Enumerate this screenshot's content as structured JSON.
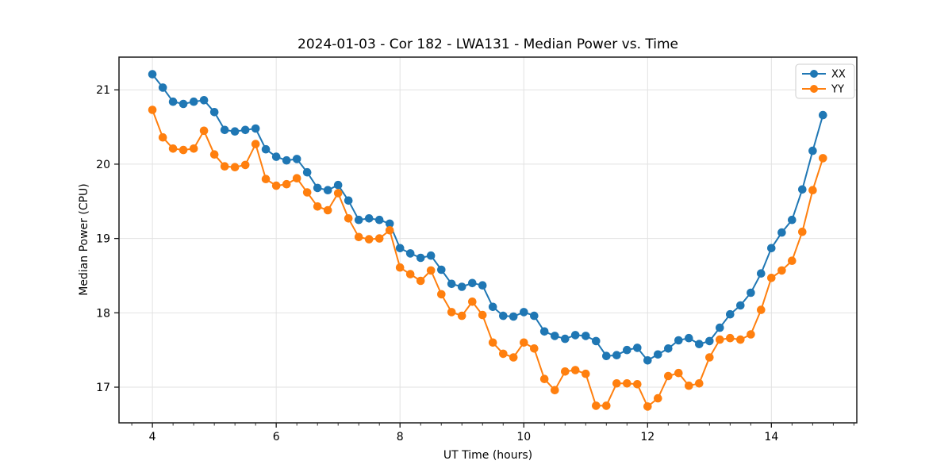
{
  "chart_data": {
    "type": "line",
    "title": "2024-01-03 - Cor 182 - LWA131 - Median Power vs. Time",
    "xlabel": "UT Time (hours)",
    "ylabel": "Median Power (CPU)",
    "xlim": [
      3.46,
      15.38
    ],
    "ylim": [
      16.52,
      21.44
    ],
    "xticks": [
      4,
      6,
      8,
      10,
      12,
      14
    ],
    "yticks": [
      17,
      18,
      19,
      20,
      21
    ],
    "x_minor_step": 0.3333,
    "grid": true,
    "legend_position": "upper right",
    "x": [
      4.0,
      4.167,
      4.333,
      4.5,
      4.667,
      4.833,
      5.0,
      5.167,
      5.333,
      5.5,
      5.667,
      5.833,
      6.0,
      6.167,
      6.333,
      6.5,
      6.667,
      6.833,
      7.0,
      7.167,
      7.333,
      7.5,
      7.667,
      7.833,
      8.0,
      8.167,
      8.333,
      8.5,
      8.667,
      8.833,
      9.0,
      9.167,
      9.333,
      9.5,
      9.667,
      9.833,
      10.0,
      10.167,
      10.333,
      10.5,
      10.667,
      10.833,
      11.0,
      11.167,
      11.333,
      11.5,
      11.667,
      11.833,
      12.0,
      12.167,
      12.333,
      12.5,
      12.667,
      12.833,
      13.0,
      13.167,
      13.333,
      13.5,
      13.667,
      13.833,
      14.0,
      14.167,
      14.333,
      14.5,
      14.667,
      14.833
    ],
    "series": [
      {
        "name": "XX",
        "color": "#1f77b4",
        "marker": "circle",
        "values": [
          21.21,
          21.03,
          20.84,
          20.81,
          20.84,
          20.86,
          20.7,
          20.46,
          20.44,
          20.46,
          20.48,
          20.2,
          20.1,
          20.05,
          20.07,
          19.89,
          19.68,
          19.65,
          19.72,
          19.51,
          19.25,
          19.27,
          19.25,
          19.2,
          18.87,
          18.8,
          18.74,
          18.77,
          18.58,
          18.39,
          18.35,
          18.4,
          18.37,
          18.08,
          17.96,
          17.95,
          18.01,
          17.96,
          17.75,
          17.69,
          17.65,
          17.7,
          17.69,
          17.62,
          17.42,
          17.43,
          17.5,
          17.53,
          17.36,
          17.44,
          17.52,
          17.63,
          17.66,
          17.58,
          17.62,
          17.8,
          17.98,
          18.1,
          18.27,
          18.53,
          18.87,
          19.08,
          19.25,
          19.66,
          20.18,
          20.66
        ]
      },
      {
        "name": "YY",
        "color": "#ff7f0e",
        "marker": "circle",
        "values": [
          20.73,
          20.36,
          20.21,
          20.19,
          20.21,
          20.45,
          20.13,
          19.97,
          19.96,
          19.99,
          20.27,
          19.8,
          19.71,
          19.73,
          19.81,
          19.62,
          19.43,
          19.38,
          19.61,
          19.27,
          19.02,
          18.99,
          19.0,
          19.11,
          18.61,
          18.52,
          18.43,
          18.57,
          18.25,
          18.01,
          17.96,
          18.15,
          17.97,
          17.6,
          17.45,
          17.4,
          17.6,
          17.52,
          17.11,
          16.96,
          17.21,
          17.23,
          17.18,
          16.75,
          16.75,
          17.05,
          17.05,
          17.04,
          16.74,
          16.85,
          17.15,
          17.19,
          17.02,
          17.05,
          17.4,
          17.64,
          17.66,
          17.64,
          17.71,
          18.04,
          18.47,
          18.57,
          18.7,
          19.09,
          19.65,
          20.08
        ]
      }
    ]
  },
  "colors": {
    "background": "#ffffff",
    "grid": "#e2e2e2",
    "spine": "#1a1a1a",
    "text": "#000000",
    "legend_border": "#cccccc"
  }
}
